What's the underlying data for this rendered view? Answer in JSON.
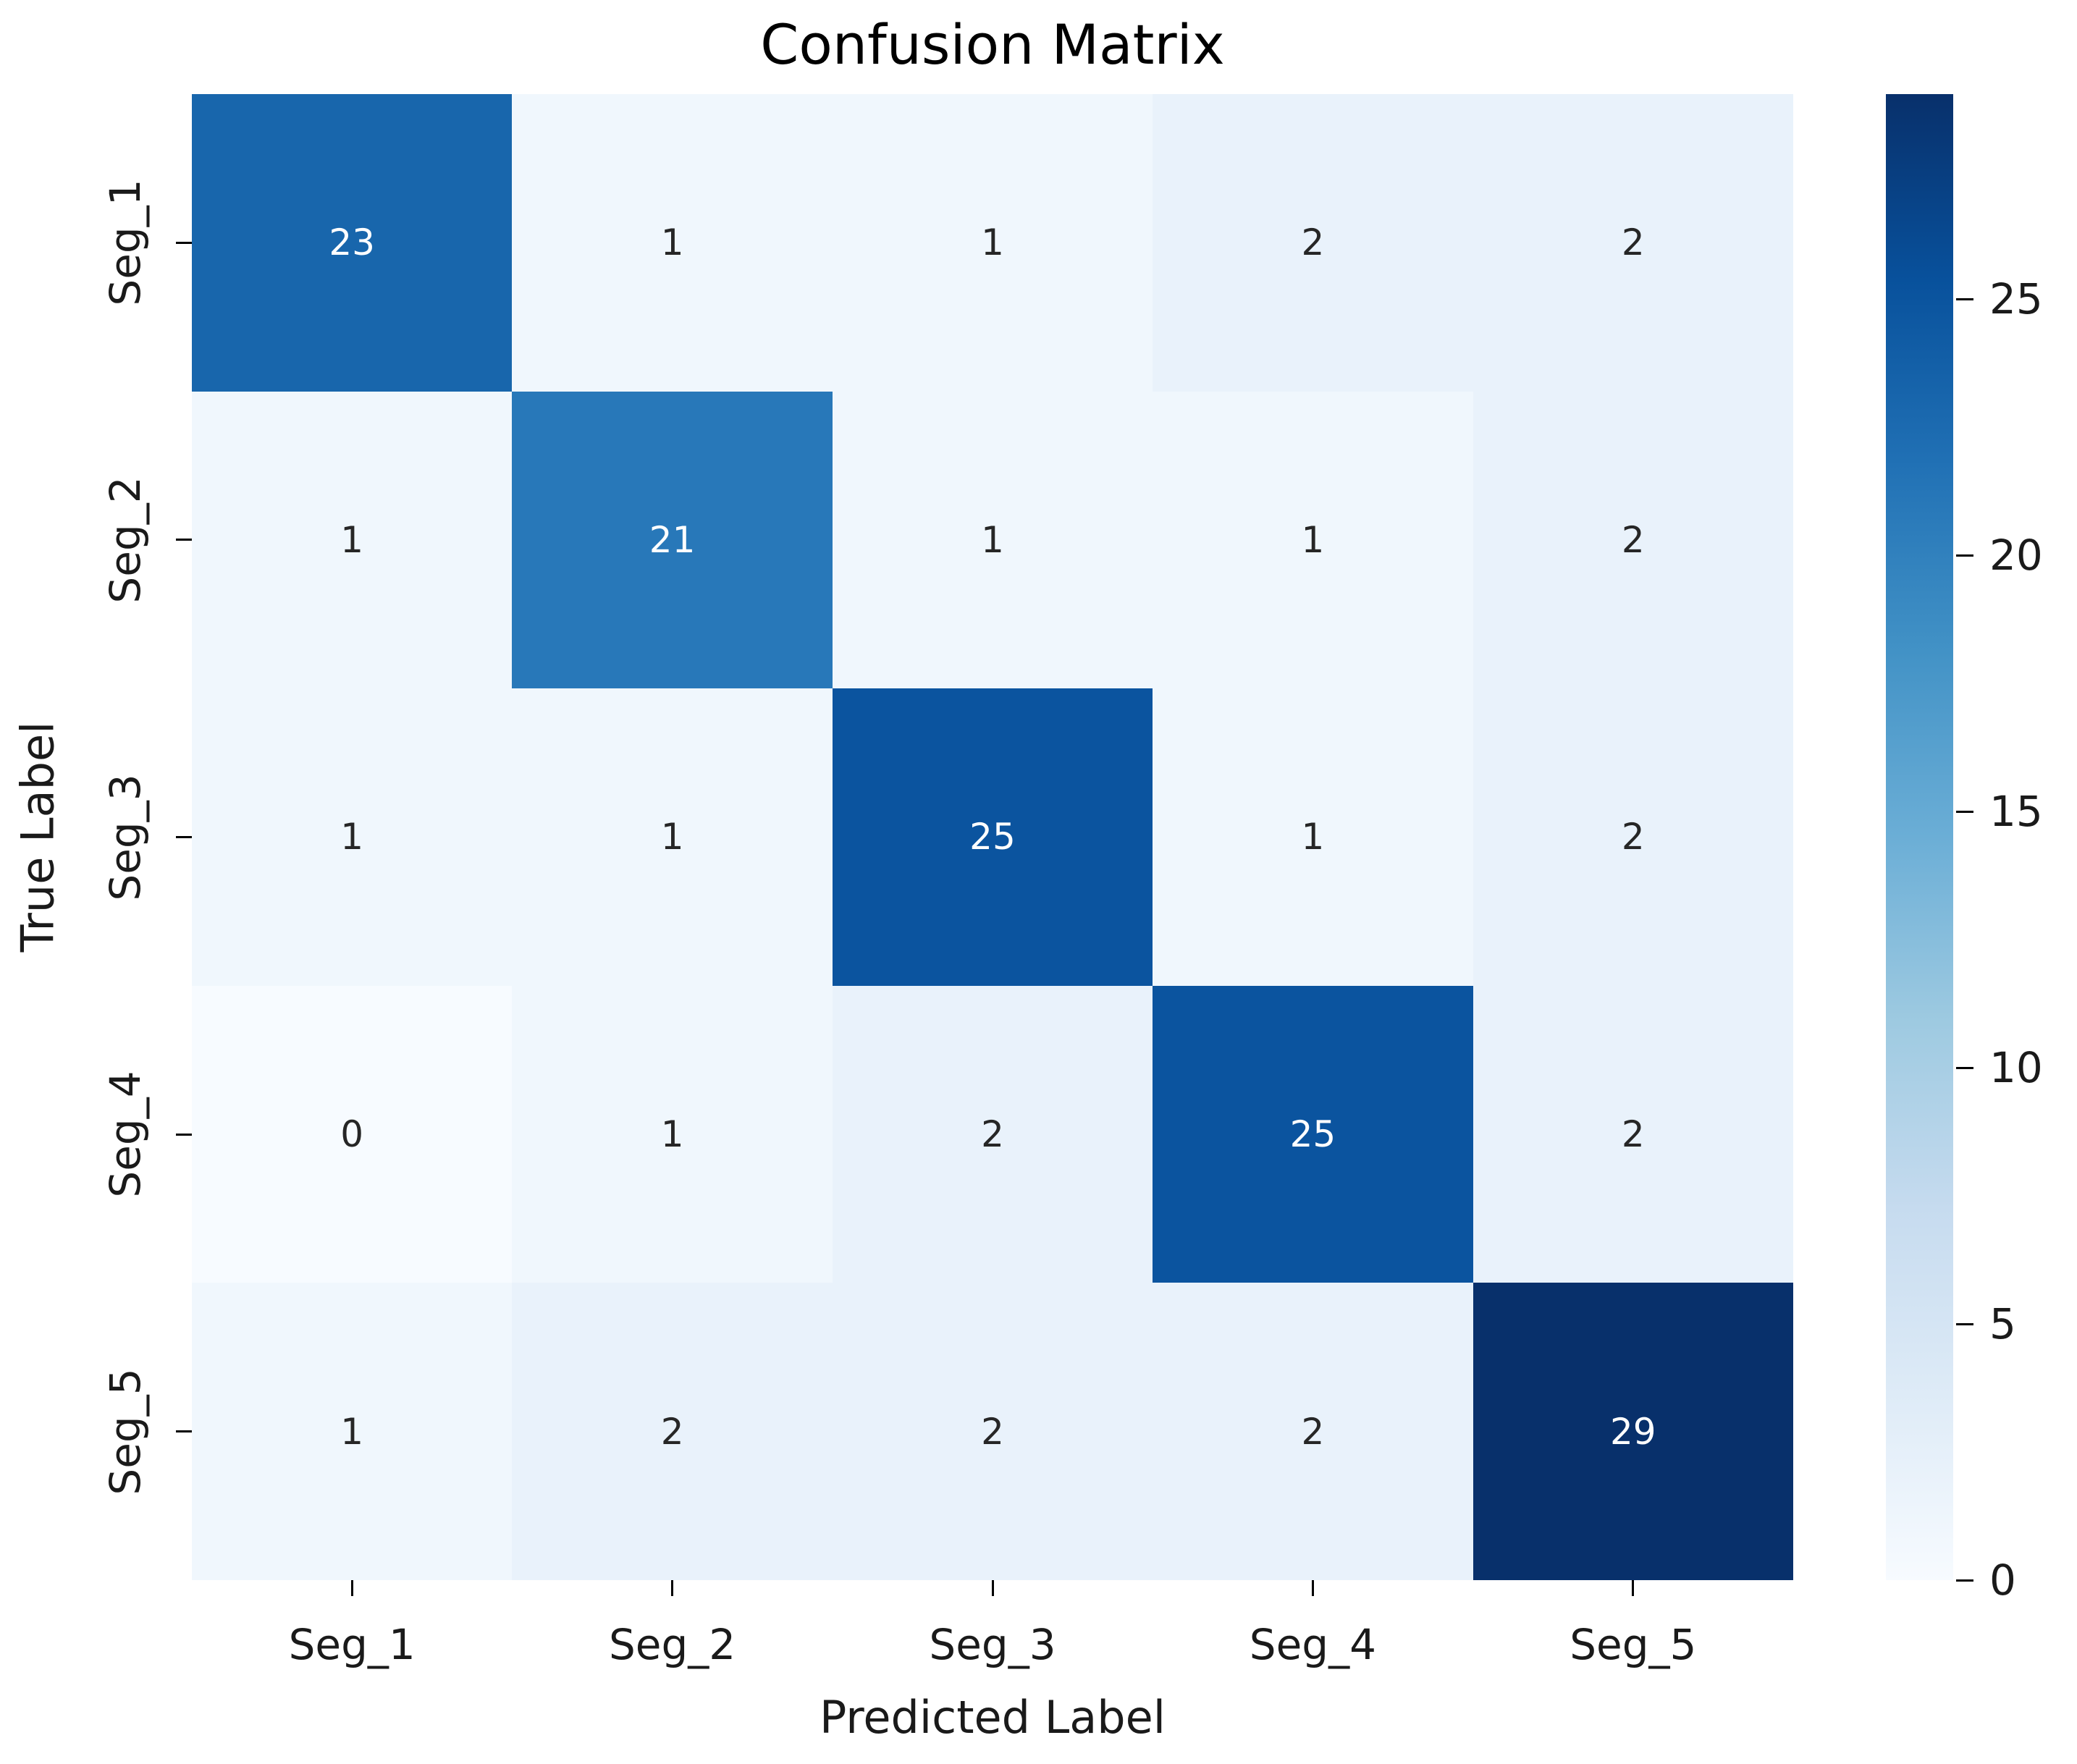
{
  "figure": {
    "title": "Confusion Matrix",
    "xlabel": "Predicted Label",
    "ylabel": "True Label"
  },
  "chart_data": {
    "type": "heatmap",
    "title": "Confusion Matrix",
    "xlabel": "Predicted Label",
    "ylabel": "True Label",
    "x_tick_labels": [
      "Seg_1",
      "Seg_2",
      "Seg_3",
      "Seg_4",
      "Seg_5"
    ],
    "y_tick_labels": [
      "Seg_1",
      "Seg_2",
      "Seg_3",
      "Seg_4",
      "Seg_5"
    ],
    "matrix": [
      [
        23,
        1,
        1,
        2,
        2
      ],
      [
        1,
        21,
        1,
        1,
        2
      ],
      [
        1,
        1,
        25,
        1,
        2
      ],
      [
        0,
        1,
        2,
        25,
        2
      ],
      [
        1,
        2,
        2,
        2,
        29
      ]
    ],
    "vmin": 0,
    "vmax": 29,
    "colormap": "Blues",
    "colormap_stops": [
      "#f7fbff",
      "#deebf7",
      "#c6dbef",
      "#9ecae1",
      "#6baed6",
      "#4292c6",
      "#2171b5",
      "#08519c",
      "#08306b"
    ],
    "colorbar_ticks": [
      0,
      5,
      10,
      15,
      20,
      25
    ],
    "legend_position": "right",
    "grid": false,
    "annotation_text_colors": {
      "on_dark": "#ffffff",
      "on_light": "#262626"
    }
  }
}
